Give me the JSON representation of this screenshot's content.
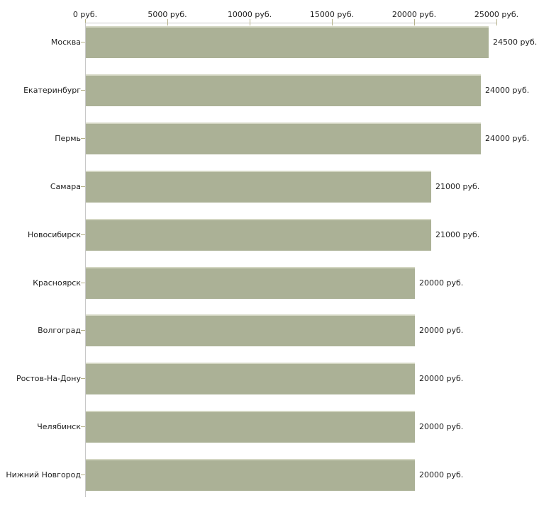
{
  "chart_data": {
    "type": "bar",
    "orientation": "horizontal",
    "title": "",
    "xlabel": "",
    "ylabel": "",
    "grid": false,
    "legend": "none",
    "x_axis": {
      "position": "top",
      "min": 0,
      "max": 25000,
      "unit": "руб.",
      "ticks": [
        0,
        5000,
        10000,
        15000,
        20000,
        25000
      ],
      "tick_labels": [
        "0 руб.",
        "5000 руб.",
        "10000 руб.",
        "15000 руб.",
        "20000 руб.",
        "25000 руб."
      ]
    },
    "categories": [
      "Москва",
      "Екатеринбург",
      "Пермь",
      "Самара",
      "Новосибирск",
      "Красноярск",
      "Волгоград",
      "Ростов-На-Дону",
      "Челябинск",
      "Нижний Новгород"
    ],
    "values": [
      24500,
      24000,
      24000,
      21000,
      21000,
      20000,
      20000,
      20000,
      20000,
      20000
    ],
    "value_labels": [
      "24500 руб.",
      "24000 руб.",
      "24000 руб.",
      "21000 руб.",
      "21000 руб.",
      "20000 руб.",
      "20000 руб.",
      "20000 руб.",
      "20000 руб.",
      "20000 руб."
    ],
    "colors": {
      "bar": "#abb196",
      "bar_top_edge": "#d3d6c2",
      "axis_line": "#c8c8c8",
      "tick_mark": "#b5b189",
      "text": "#1f1f1f",
      "background": "#ffffff"
    }
  }
}
